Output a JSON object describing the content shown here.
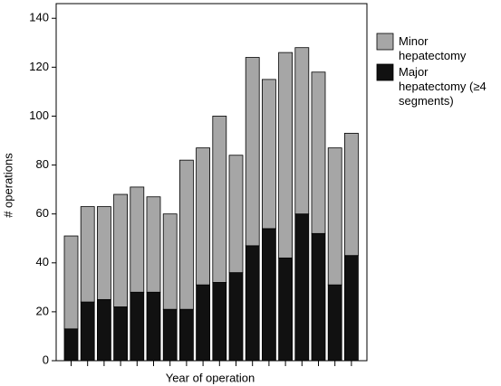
{
  "chart_data": {
    "type": "stacked_bar",
    "x_label": "Year of operation",
    "y_label": "# operations",
    "categories": [
      null,
      null,
      null,
      null,
      null,
      null,
      null,
      null,
      null,
      null,
      null,
      null,
      null,
      null,
      null,
      null,
      null,
      null
    ],
    "series": [
      {
        "name": "Major hepatectomy (≥4 segments)",
        "color": "#111111",
        "values": [
          13,
          24,
          25,
          22,
          28,
          28,
          21,
          21,
          31,
          32,
          36,
          47,
          54,
          42,
          60,
          52,
          31,
          43
        ]
      },
      {
        "name": "Minor hepatectomy",
        "color": "#a6a6a6",
        "values": [
          38,
          39,
          38,
          46,
          43,
          39,
          39,
          61,
          56,
          68,
          48,
          77,
          61,
          84,
          68,
          66,
          56,
          50
        ]
      }
    ],
    "ylim": [
      0,
      146
    ],
    "yticks": [
      0,
      20,
      40,
      60,
      80,
      100,
      120,
      140
    ],
    "grid": false
  }
}
